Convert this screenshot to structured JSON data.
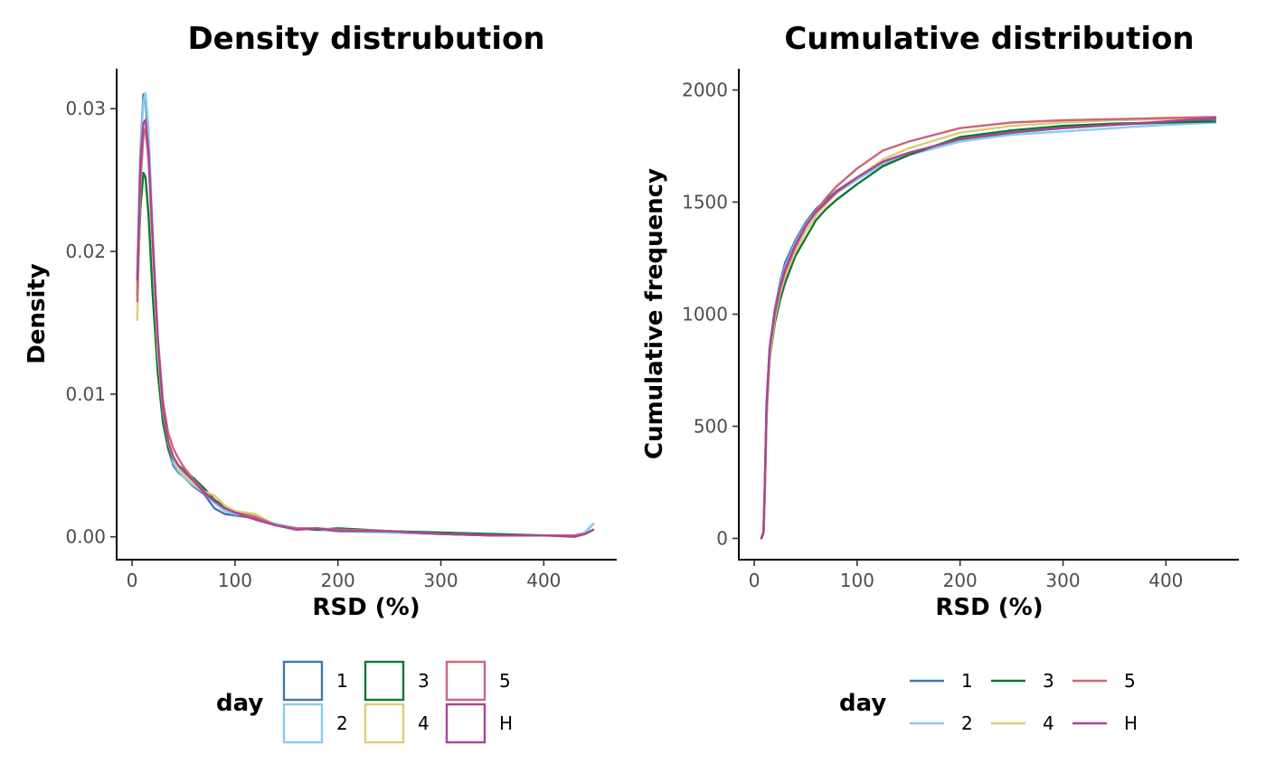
{
  "legend_title": "day",
  "colors": {
    "1": "#4477AA",
    "2": "#88CCEE",
    "3": "#117733",
    "4": "#DDCC77",
    "5": "#CC6677",
    "H": "#AA4499"
  },
  "chart_data": [
    {
      "type": "line",
      "title": "Density distrubution",
      "xlabel": "RSD (%)",
      "ylabel": "Density",
      "xlim": [
        -15,
        470
      ],
      "ylim": [
        -0.0016,
        0.0328
      ],
      "xticks": [
        0,
        100,
        200,
        300,
        400
      ],
      "yticks": [
        0,
        0.01,
        0.02,
        0.03
      ],
      "ytick_labels": [
        "0.00",
        "0.01",
        "0.02",
        "0.03"
      ],
      "grid": false,
      "legend": "bottom",
      "legend_key": "box",
      "x": [
        5,
        8,
        11,
        13,
        16,
        20,
        25,
        30,
        35,
        40,
        45,
        50,
        60,
        70,
        80,
        90,
        100,
        120,
        140,
        160,
        180,
        200,
        250,
        300,
        350,
        400,
        430,
        440,
        448
      ],
      "series": [
        {
          "name": "1",
          "values": [
            0.018,
            0.027,
            0.031,
            0.0308,
            0.027,
            0.02,
            0.013,
            0.0085,
            0.0062,
            0.005,
            0.0045,
            0.0042,
            0.0035,
            0.003,
            0.002,
            0.0016,
            0.0015,
            0.0013,
            0.0009,
            0.0006,
            0.0005,
            0.0005,
            0.0003,
            0.0002,
            0.0001,
            0.0001,
            0.0001,
            0.0003,
            0.0009
          ]
        },
        {
          "name": "2",
          "values": [
            0.0175,
            0.0268,
            0.0305,
            0.0311,
            0.0285,
            0.0215,
            0.014,
            0.009,
            0.0065,
            0.0052,
            0.0046,
            0.0042,
            0.0036,
            0.0031,
            0.0024,
            0.0018,
            0.0016,
            0.0014,
            0.0009,
            0.0006,
            0.0005,
            0.0004,
            0.0003,
            0.0002,
            0.0001,
            0.0001,
            0.0001,
            0.0003,
            0.0009
          ]
        },
        {
          "name": "3",
          "values": [
            0.017,
            0.023,
            0.0255,
            0.0252,
            0.0225,
            0.017,
            0.0115,
            0.008,
            0.0062,
            0.0054,
            0.005,
            0.0047,
            0.0041,
            0.0034,
            0.0026,
            0.0021,
            0.0018,
            0.0014,
            0.0008,
            0.0006,
            0.0005,
            0.0006,
            0.0004,
            0.0003,
            0.0002,
            0.0001,
            0.0001,
            0.0002,
            0.0005
          ]
        },
        {
          "name": "4",
          "values": [
            0.0152,
            0.0245,
            0.028,
            0.0285,
            0.0262,
            0.02,
            0.013,
            0.0088,
            0.0066,
            0.0055,
            0.0048,
            0.0044,
            0.0037,
            0.0032,
            0.0029,
            0.0022,
            0.0018,
            0.0016,
            0.0008,
            0.0006,
            0.0006,
            0.0005,
            0.0004,
            0.0002,
            0.0001,
            0.0001,
            0.0001,
            0.0002,
            0.0005
          ]
        },
        {
          "name": "5",
          "values": [
            0.0165,
            0.0248,
            0.0282,
            0.0286,
            0.0265,
            0.0208,
            0.014,
            0.0095,
            0.0073,
            0.0062,
            0.0055,
            0.0049,
            0.004,
            0.0032,
            0.0025,
            0.002,
            0.0017,
            0.0014,
            0.0008,
            0.0006,
            0.0006,
            0.0005,
            0.0004,
            0.0002,
            0.0001,
            0.0001,
            0.0001,
            0.0002,
            0.0005
          ]
        },
        {
          "name": "H",
          "values": [
            0.018,
            0.0262,
            0.029,
            0.0292,
            0.027,
            0.021,
            0.0138,
            0.009,
            0.0067,
            0.0056,
            0.005,
            0.0046,
            0.0039,
            0.0031,
            0.0025,
            0.002,
            0.0017,
            0.0012,
            0.0008,
            0.0005,
            0.0006,
            0.0004,
            0.0004,
            0.0002,
            0.0001,
            0.0001,
            0.0,
            0.0002,
            0.0005
          ]
        }
      ]
    },
    {
      "type": "line",
      "title": "Cumulative distribution",
      "xlabel": "RSD (%)",
      "ylabel": "Cumulative frequency",
      "xlim": [
        -15,
        470
      ],
      "ylim": [
        -95,
        2095
      ],
      "xticks": [
        0,
        100,
        200,
        300,
        400
      ],
      "yticks": [
        0,
        500,
        1000,
        1500,
        2000
      ],
      "ytick_labels": [
        "0",
        "500",
        "1000",
        "1500",
        "2000"
      ],
      "grid": false,
      "legend": "bottom",
      "legend_key": "line",
      "x": [
        7,
        9,
        10,
        12,
        15,
        20,
        25,
        30,
        40,
        50,
        60,
        70,
        80,
        100,
        125,
        150,
        200,
        250,
        300,
        350,
        400,
        448
      ],
      "series": [
        {
          "name": "1",
          "values": [
            0,
            30,
            200,
            600,
            850,
            1020,
            1140,
            1230,
            1330,
            1410,
            1470,
            1510,
            1550,
            1610,
            1680,
            1720,
            1780,
            1810,
            1830,
            1845,
            1855,
            1870
          ]
        },
        {
          "name": "2",
          "values": [
            0,
            25,
            180,
            580,
            840,
            1010,
            1130,
            1210,
            1320,
            1400,
            1460,
            1500,
            1540,
            1600,
            1670,
            1710,
            1770,
            1800,
            1815,
            1830,
            1845,
            1855
          ]
        },
        {
          "name": "3",
          "values": [
            0,
            20,
            160,
            540,
            800,
            960,
            1060,
            1140,
            1260,
            1340,
            1420,
            1470,
            1510,
            1580,
            1660,
            1710,
            1790,
            1820,
            1840,
            1850,
            1855,
            1860
          ]
        },
        {
          "name": "4",
          "values": [
            0,
            20,
            170,
            560,
            810,
            980,
            1090,
            1170,
            1280,
            1370,
            1440,
            1490,
            1540,
            1610,
            1690,
            1740,
            1810,
            1840,
            1855,
            1865,
            1870,
            1875
          ]
        },
        {
          "name": "5",
          "values": [
            0,
            25,
            190,
            590,
            840,
            1000,
            1110,
            1190,
            1300,
            1390,
            1460,
            1520,
            1570,
            1650,
            1730,
            1770,
            1830,
            1855,
            1865,
            1870,
            1875,
            1880
          ]
        },
        {
          "name": "H",
          "values": [
            0,
            28,
            195,
            600,
            850,
            1010,
            1120,
            1200,
            1310,
            1395,
            1455,
            1500,
            1545,
            1610,
            1680,
            1720,
            1780,
            1810,
            1830,
            1845,
            1860,
            1875
          ]
        }
      ]
    }
  ]
}
